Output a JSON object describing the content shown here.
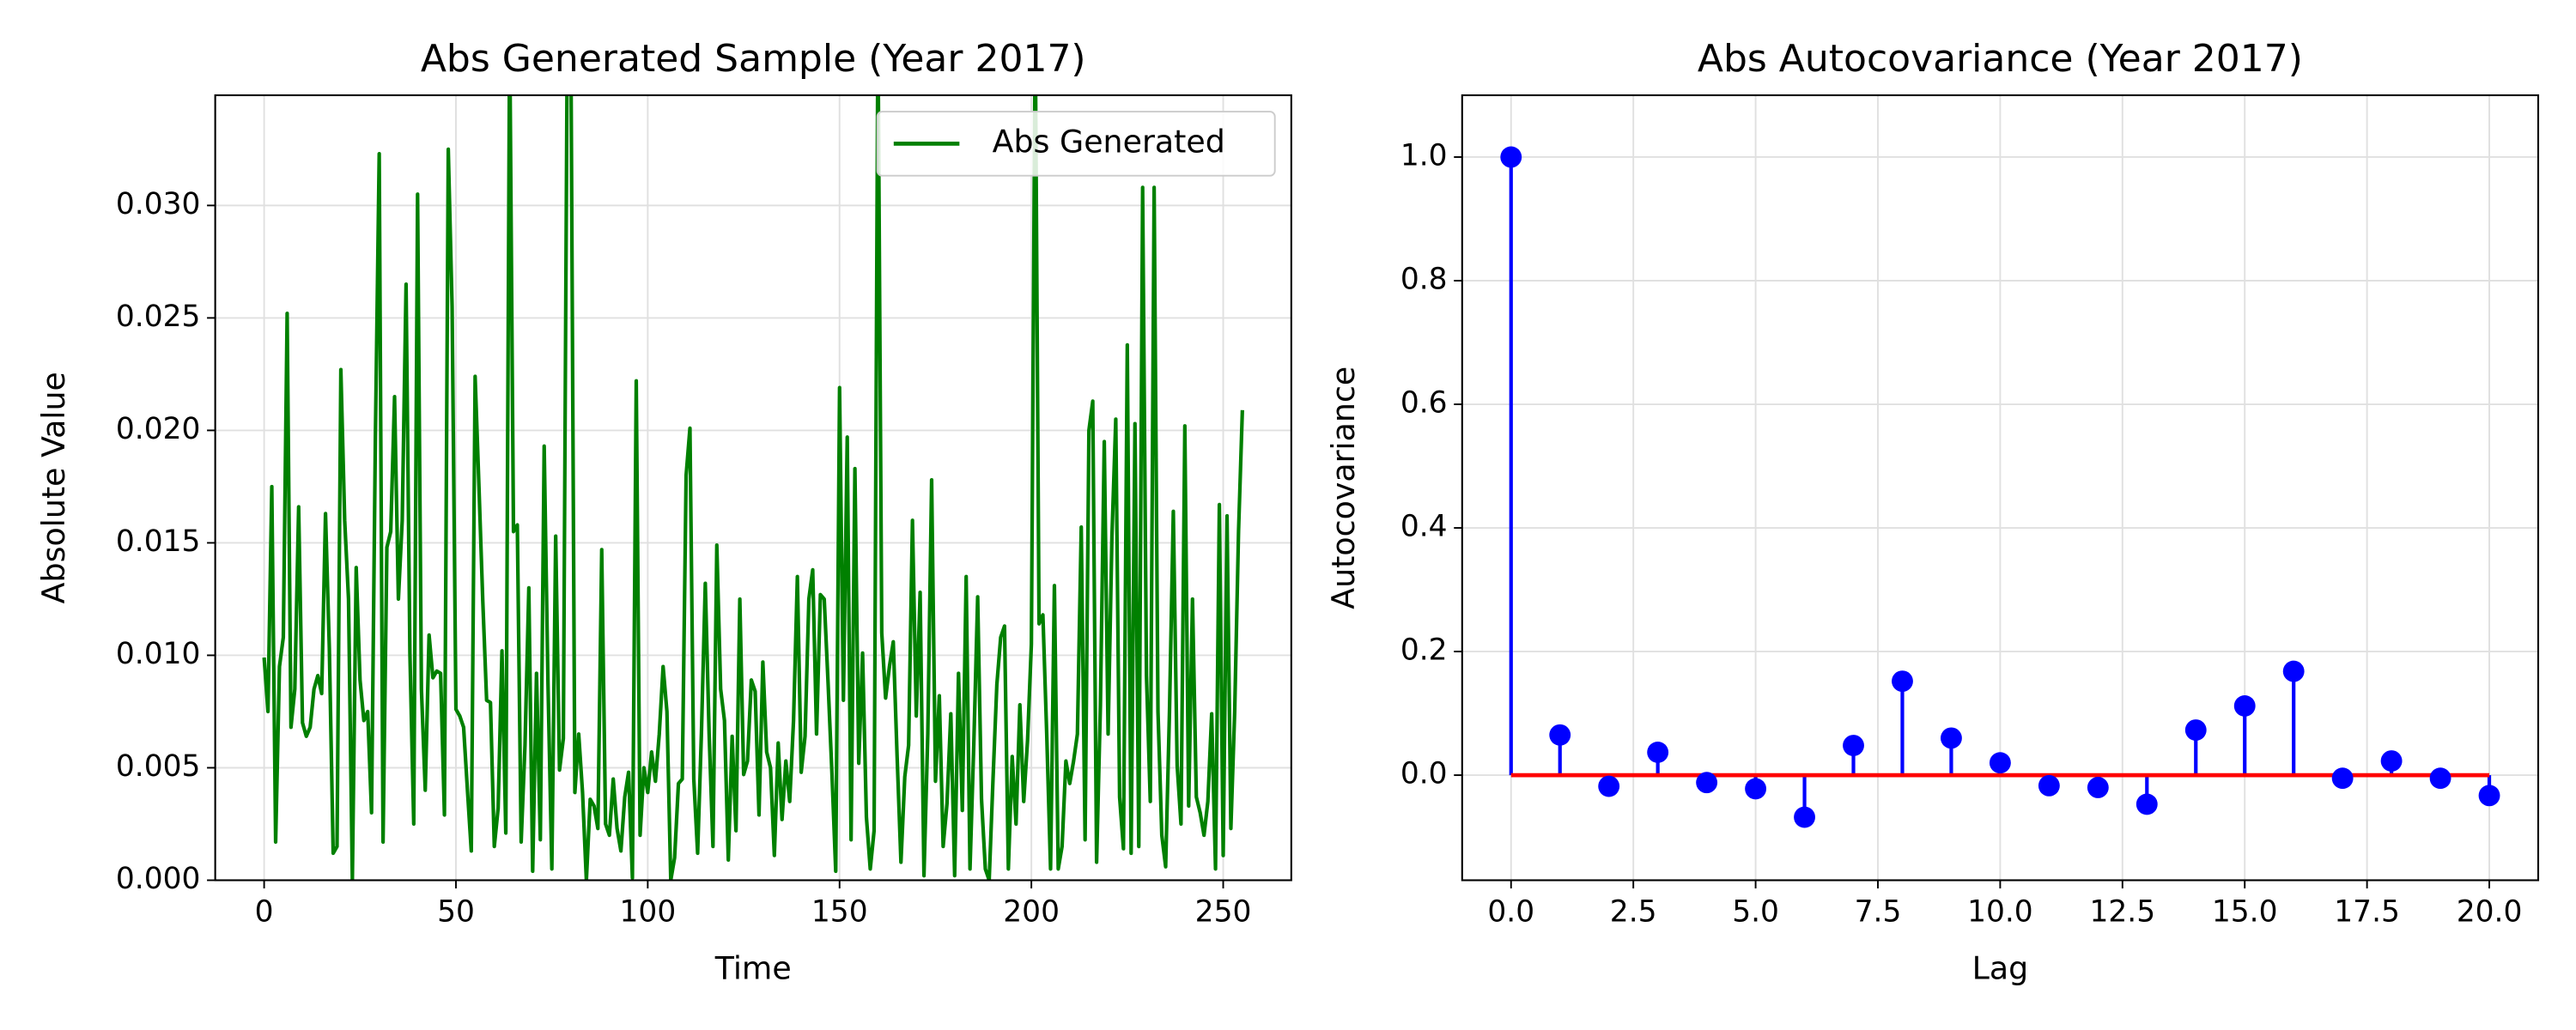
{
  "chart_data": [
    {
      "type": "line",
      "title": "Abs Generated Sample (Year 2017)",
      "x_label": "Time",
      "y_label": "Absolute Value",
      "x": [
        0,
        1,
        2,
        3,
        4,
        5,
        6,
        7,
        8,
        9,
        10,
        11,
        12,
        13,
        14,
        15,
        16,
        17,
        18,
        19,
        20,
        21,
        22,
        23,
        24,
        25,
        26,
        27,
        28,
        29,
        30,
        31,
        32,
        33,
        34,
        35,
        36,
        37,
        38,
        39,
        40,
        41,
        42,
        43,
        44,
        45,
        46,
        47,
        48,
        49,
        50,
        51,
        52,
        53,
        54,
        55,
        56,
        57,
        58,
        59,
        60,
        61,
        62,
        63,
        64,
        65,
        66,
        67,
        68,
        69,
        70,
        71,
        72,
        73,
        74,
        75,
        76,
        77,
        78,
        79,
        80,
        81,
        82,
        83,
        84,
        85,
        86,
        87,
        88,
        89,
        90,
        91,
        92,
        93,
        94,
        95,
        96,
        97,
        98,
        99,
        100,
        101,
        102,
        103,
        104,
        105,
        106,
        107,
        108,
        109,
        110,
        111,
        112,
        113,
        114,
        115,
        116,
        117,
        118,
        119,
        120,
        121,
        122,
        123,
        124,
        125,
        126,
        127,
        128,
        129,
        130,
        131,
        132,
        133,
        134,
        135,
        136,
        137,
        138,
        139,
        140,
        141,
        142,
        143,
        144,
        145,
        146,
        147,
        148,
        149,
        150,
        151,
        152,
        153,
        154,
        155,
        156,
        157,
        158,
        159,
        160,
        161,
        162,
        163,
        164,
        165,
        166,
        167,
        168,
        169,
        170,
        171,
        172,
        173,
        174,
        175,
        176,
        177,
        178,
        179,
        180,
        181,
        182,
        183,
        184,
        185,
        186,
        187,
        188,
        189,
        190,
        191,
        192,
        193,
        194,
        195,
        196,
        197,
        198,
        199,
        200,
        201,
        202,
        203,
        204,
        205,
        206,
        207,
        208,
        209,
        210,
        211,
        212,
        213,
        214,
        215,
        216,
        217,
        218,
        219,
        220,
        221,
        222,
        223,
        224,
        225,
        226,
        227,
        228,
        229,
        230,
        231,
        232,
        233,
        234,
        235,
        236,
        237,
        238,
        239,
        240,
        241,
        242,
        243,
        244,
        245,
        246,
        247,
        248,
        249,
        250,
        251,
        252,
        253,
        254,
        255
      ],
      "series": [
        {
          "name": "Abs Generated",
          "color": "green",
          "values": [
            0.0099,
            0.0075,
            0.0175,
            0.0017,
            0.0095,
            0.0108,
            0.0252,
            0.0068,
            0.0085,
            0.0166,
            0.007,
            0.0064,
            0.0068,
            0.0085,
            0.0091,
            0.0083,
            0.0163,
            0.0103,
            0.0012,
            0.0015,
            0.0227,
            0.016,
            0.0125,
            0.0,
            0.0139,
            0.0089,
            0.0071,
            0.0075,
            0.003,
            0.0197,
            0.0323,
            0.0017,
            0.0148,
            0.0155,
            0.0215,
            0.0125,
            0.016,
            0.0265,
            0.0101,
            0.0025,
            0.0305,
            0.0085,
            0.004,
            0.0109,
            0.009,
            0.0093,
            0.0092,
            0.0029,
            0.0325,
            0.0255,
            0.0076,
            0.0073,
            0.0068,
            0.004,
            0.0013,
            0.0224,
            0.0175,
            0.0124,
            0.008,
            0.0079,
            0.0015,
            0.0032,
            0.0102,
            0.0021,
            0.038,
            0.0155,
            0.0158,
            0.0017,
            0.006,
            0.013,
            0.0004,
            0.0092,
            0.0018,
            0.0193,
            0.0087,
            0.0005,
            0.0153,
            0.0049,
            0.0063,
            0.037,
            0.036,
            0.0039,
            0.0065,
            0.0039,
            0.0,
            0.0036,
            0.0033,
            0.0023,
            0.0147,
            0.0025,
            0.002,
            0.0045,
            0.0023,
            0.0013,
            0.0037,
            0.0048,
            0.0001,
            0.0222,
            0.002,
            0.005,
            0.0039,
            0.0057,
            0.0044,
            0.0065,
            0.0095,
            0.0075,
            0.0,
            0.001,
            0.0043,
            0.0045,
            0.018,
            0.0201,
            0.0045,
            0.0012,
            0.0066,
            0.0132,
            0.0065,
            0.0015,
            0.0149,
            0.0085,
            0.0071,
            0.0009,
            0.0064,
            0.0022,
            0.0125,
            0.0047,
            0.0053,
            0.0089,
            0.0084,
            0.0029,
            0.0097,
            0.0057,
            0.005,
            0.0011,
            0.0061,
            0.0027,
            0.0053,
            0.0035,
            0.0071,
            0.0135,
            0.0048,
            0.0064,
            0.0125,
            0.0138,
            0.0065,
            0.0127,
            0.0125,
            0.0088,
            0.0048,
            0.0004,
            0.0219,
            0.008,
            0.0197,
            0.0018,
            0.0183,
            0.0052,
            0.0101,
            0.0028,
            0.0005,
            0.0022,
            0.038,
            0.011,
            0.0081,
            0.0095,
            0.0106,
            0.0055,
            0.0008,
            0.0046,
            0.006,
            0.016,
            0.0073,
            0.0128,
            0.0002,
            0.0065,
            0.0178,
            0.0044,
            0.0082,
            0.0015,
            0.0034,
            0.0074,
            0.0002,
            0.0092,
            0.0031,
            0.0135,
            0.0005,
            0.0061,
            0.0126,
            0.0036,
            0.0005,
            0.0,
            0.0045,
            0.0087,
            0.0108,
            0.0113,
            0.0005,
            0.0055,
            0.0025,
            0.0078,
            0.0035,
            0.0062,
            0.0105,
            0.038,
            0.0114,
            0.0118,
            0.0065,
            0.0005,
            0.0131,
            0.0005,
            0.0015,
            0.0053,
            0.0043,
            0.0053,
            0.0065,
            0.0157,
            0.0018,
            0.02,
            0.0213,
            0.0008,
            0.0078,
            0.0195,
            0.0065,
            0.0153,
            0.0205,
            0.0037,
            0.0014,
            0.0238,
            0.0012,
            0.0203,
            0.0015,
            0.0308,
            0.0091,
            0.0035,
            0.0308,
            0.0075,
            0.002,
            0.0006,
            0.0075,
            0.0164,
            0.0051,
            0.0025,
            0.0202,
            0.0033,
            0.0125,
            0.0037,
            0.003,
            0.002,
            0.0035,
            0.0074,
            0.0005,
            0.0167,
            0.0011,
            0.0162,
            0.0023,
            0.0075,
            0.0155,
            0.0209
          ]
        }
      ],
      "xlim": [
        -12.75,
        267.75
      ],
      "xticks": [
        0,
        50,
        100,
        150,
        200,
        250
      ],
      "ylim": [
        0,
        0.0349
      ],
      "yticks": [
        {
          "value": 0,
          "label": "0.000"
        },
        0.005,
        {
          "value": 0.01,
          "label": "0.010"
        },
        0.015,
        {
          "value": 0.02,
          "label": "0.020"
        },
        0.025,
        {
          "value": 0.03,
          "label": "0.030"
        }
      ],
      "grid": true,
      "legend": "upper right"
    },
    {
      "type": "stem",
      "title": "Abs Autocovariance (Year 2017)",
      "x_label": "Lag",
      "y_label": "Autocovariance",
      "x": [
        0,
        1,
        2,
        3,
        4,
        5,
        6,
        7,
        8,
        9,
        10,
        11,
        12,
        13,
        14,
        15,
        16,
        17,
        18,
        19,
        20
      ],
      "values": [
        1.0,
        0.065,
        -0.018,
        0.037,
        -0.012,
        -0.022,
        -0.068,
        0.048,
        0.152,
        0.06,
        0.02,
        -0.017,
        -0.02,
        -0.047,
        0.073,
        0.112,
        0.168,
        -0.005,
        0.023,
        -0.005,
        -0.033
      ],
      "color": "blue",
      "baseline_color": "red",
      "xlim": [
        -1,
        21
      ],
      "xticks": [
        {
          "value": 0,
          "label": "0.0"
        },
        2.5,
        {
          "value": 5,
          "label": "5.0"
        },
        7.5,
        {
          "value": 10,
          "label": "10.0"
        },
        12.5,
        {
          "value": 15,
          "label": "15.0"
        },
        17.5,
        {
          "value": 20,
          "label": "20.0"
        }
      ],
      "ylim": [
        -0.17,
        1.1
      ],
      "yticks": [
        {
          "value": 0,
          "label": "0.0"
        },
        0.2,
        0.4,
        0.6,
        0.8,
        {
          "value": 1,
          "label": "1.0"
        }
      ],
      "grid": true
    }
  ]
}
